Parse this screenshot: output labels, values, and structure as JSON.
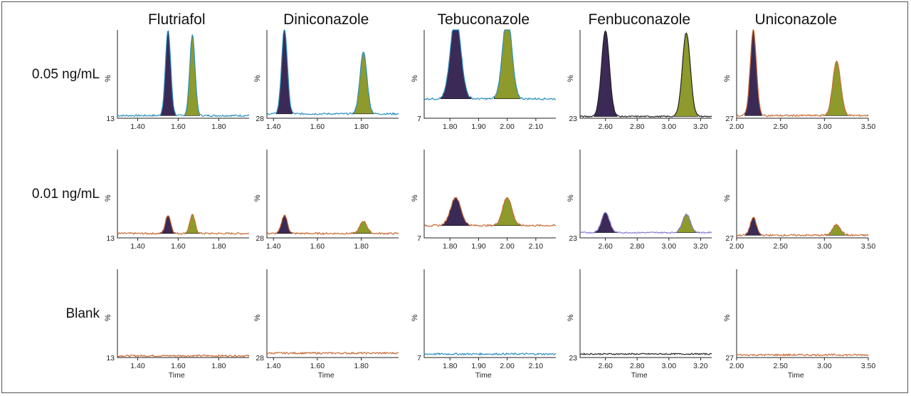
{
  "chart_data": {
    "type": "line",
    "description_kind": "chromatogram grid",
    "compounds": [
      "Flutriafol",
      "Diniconazole",
      "Tebuconazole",
      "Fenbuconazole",
      "Uniconazole"
    ],
    "rows": [
      "0.05 ng/mL",
      "0.01 ng/mL",
      "Blank"
    ],
    "y_axis_label": "%",
    "x_axis_label": "Time",
    "colors": {
      "peak1": "#3b2a55",
      "peak2": "#8e9a2c",
      "trace_blue": "#2a8fbf",
      "trace_orange": "#c96a35",
      "trace_black": "#222222",
      "trace_purple": "#8a7ad0"
    },
    "columns": [
      {
        "name": "Flutriafol",
        "xlim": [
          1.3,
          1.95
        ],
        "y_min_label": "13",
        "ticks": [
          {
            "v": 1.4,
            "t": "1.40"
          },
          {
            "v": 1.6,
            "t": "1.60"
          },
          {
            "v": 1.8,
            "t": "1.80"
          }
        ],
        "peaks": [
          {
            "t": 1.55,
            "w": 0.013
          },
          {
            "t": 1.67,
            "w": 0.013
          }
        ],
        "baseline": 0.03,
        "noise": 0.02,
        "rows": [
          {
            "trace": "trace_blue",
            "heights": [
              0.97,
              0.92
            ],
            "baseline": 0.03
          },
          {
            "trace": "trace_orange",
            "heights": [
              0.21,
              0.21
            ],
            "baseline": 0.05
          },
          {
            "trace": "trace_orange",
            "heights": [
              0,
              0
            ],
            "baseline": 0.02
          }
        ]
      },
      {
        "name": "Diniconazole",
        "xlim": [
          1.37,
          1.97
        ],
        "y_min_label": "28",
        "ticks": [
          {
            "v": 1.4,
            "t": "1.40"
          },
          {
            "v": 1.6,
            "t": "1.60"
          },
          {
            "v": 1.8,
            "t": "1.80"
          }
        ],
        "peaks": [
          {
            "t": 1.45,
            "w": 0.013
          },
          {
            "t": 1.81,
            "w": 0.016
          }
        ],
        "baseline": 0.03,
        "noise": 0.02,
        "rows": [
          {
            "trace": "trace_blue",
            "heights": [
              0.97,
              0.7
            ],
            "baseline": 0.05
          },
          {
            "trace": "trace_orange",
            "heights": [
              0.21,
              0.14
            ],
            "baseline": 0.05
          },
          {
            "trace": "trace_orange",
            "heights": [
              0,
              0
            ],
            "baseline": 0.05
          }
        ]
      },
      {
        "name": "Tebuconazole",
        "xlim": [
          1.71,
          2.17
        ],
        "y_min_label": "7",
        "ticks": [
          {
            "v": 1.8,
            "t": "1.80"
          },
          {
            "v": 1.9,
            "t": "1.90"
          },
          {
            "v": 2.0,
            "t": "2.00"
          },
          {
            "v": 2.1,
            "t": "2.10"
          }
        ],
        "peaks": [
          {
            "t": 1.82,
            "w": 0.018
          },
          {
            "t": 2.0,
            "w": 0.016
          }
        ],
        "baseline": 0.22,
        "noise": 0.02,
        "rows": [
          {
            "trace": "trace_blue",
            "heights": [
              0.95,
              0.96
            ],
            "baseline": 0.22
          },
          {
            "trace": "trace_orange",
            "heights": [
              0.32,
              0.32
            ],
            "baseline": 0.14
          },
          {
            "trace": "trace_blue",
            "heights": [
              0,
              0
            ],
            "baseline": 0.04
          }
        ]
      },
      {
        "name": "Fenbuconazole",
        "xlim": [
          2.44,
          3.27
        ],
        "y_min_label": "23",
        "ticks": [
          {
            "v": 2.6,
            "t": "2.60"
          },
          {
            "v": 2.8,
            "t": "2.80"
          },
          {
            "v": 3.0,
            "t": "3.00"
          },
          {
            "v": 3.2,
            "t": "3.20"
          }
        ],
        "peaks": [
          {
            "t": 2.6,
            "w": 0.025
          },
          {
            "t": 3.11,
            "w": 0.025
          }
        ],
        "baseline": 0.02,
        "noise": 0.015,
        "rows": [
          {
            "trace": "trace_black",
            "heights": [
              0.97,
              0.95
            ],
            "baseline": 0.02
          },
          {
            "trace": "trace_purple",
            "heights": [
              0.23,
              0.21
            ],
            "baseline": 0.06
          },
          {
            "trace": "trace_black",
            "heights": [
              0,
              0
            ],
            "baseline": 0.04
          }
        ]
      },
      {
        "name": "Uniconazole",
        "xlim": [
          2.0,
          3.5
        ],
        "y_min_label": "27",
        "ticks": [
          {
            "v": 2.0,
            "t": "2.00"
          },
          {
            "v": 2.5,
            "t": "2.50"
          },
          {
            "v": 3.0,
            "t": "3.00"
          },
          {
            "v": 3.5,
            "t": "3.50"
          }
        ],
        "peaks": [
          {
            "t": 2.19,
            "w": 0.035
          },
          {
            "t": 3.14,
            "w": 0.045
          }
        ],
        "baseline": 0.03,
        "noise": 0.02,
        "rows": [
          {
            "trace": "trace_orange",
            "heights": [
              0.97,
              0.62
            ],
            "baseline": 0.03
          },
          {
            "trace": "trace_orange",
            "heights": [
              0.2,
              0.12
            ],
            "baseline": 0.03
          },
          {
            "trace": "trace_orange",
            "heights": [
              0,
              0
            ],
            "baseline": 0.03
          }
        ]
      }
    ]
  }
}
